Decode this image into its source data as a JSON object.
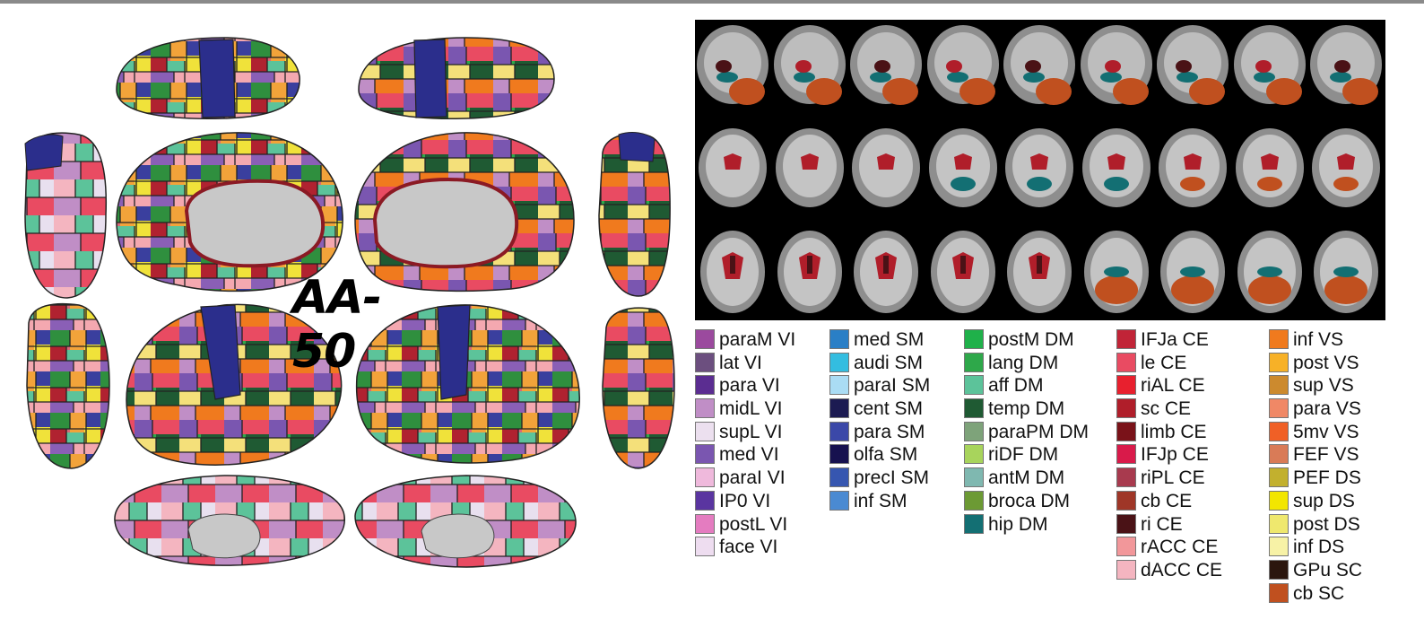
{
  "atlas_title": "AA-50",
  "colors": {
    "cortex_gray": "#c8c8c8",
    "border": "#2a2a2a",
    "slice_bg": "#000000"
  },
  "legend": {
    "columns": [
      [
        {
          "label": "paraM VI",
          "color": "#9b4a9e"
        },
        {
          "label": "lat VI",
          "color": "#6c4f7f"
        },
        {
          "label": "para VI",
          "color": "#5b2d91"
        },
        {
          "label": "midL VI",
          "color": "#c08ec6"
        },
        {
          "label": "supL VI",
          "color": "#ece0ef"
        },
        {
          "label": "med VI",
          "color": "#7a56b0"
        },
        {
          "label": "paraI VI",
          "color": "#efb9dc"
        },
        {
          "label": "IP0 VI",
          "color": "#5a35a0"
        },
        {
          "label": "postL VI",
          "color": "#e47cc0"
        },
        {
          "label": "face VI",
          "color": "#eeddf0"
        }
      ],
      [
        {
          "label": "med SM",
          "color": "#2a7fc6"
        },
        {
          "label": "audi SM",
          "color": "#33bde0"
        },
        {
          "label": "paraI SM",
          "color": "#aadcf4"
        },
        {
          "label": "cent SM",
          "color": "#1c1b52"
        },
        {
          "label": "para SM",
          "color": "#3b48a8"
        },
        {
          "label": "olfa SM",
          "color": "#17114f"
        },
        {
          "label": "precI SM",
          "color": "#3656b0"
        },
        {
          "label": "inf SM",
          "color": "#4a8ad2"
        }
      ],
      [
        {
          "label": "postM DM",
          "color": "#1fb14a"
        },
        {
          "label": "lang DM",
          "color": "#2ea84a"
        },
        {
          "label": "aff DM",
          "color": "#5cc39a"
        },
        {
          "label": "temp DM",
          "color": "#1f5a33"
        },
        {
          "label": "paraPM DM",
          "color": "#7ea37a"
        },
        {
          "label": "riDF DM",
          "color": "#a8d45c"
        },
        {
          "label": "antM DM",
          "color": "#7fb8b0"
        },
        {
          "label": "broca DM",
          "color": "#6c9a34"
        },
        {
          "label": "hip DM",
          "color": "#136f73"
        }
      ],
      [
        {
          "label": "IFJa CE",
          "color": "#c12437"
        },
        {
          "label": "le CE",
          "color": "#e94b62"
        },
        {
          "label": "riAL CE",
          "color": "#e8202e"
        },
        {
          "label": "sc CE",
          "color": "#b01e2a"
        },
        {
          "label": "limb CE",
          "color": "#7a1219"
        },
        {
          "label": "IFJp CE",
          "color": "#d91a4a"
        },
        {
          "label": "riPL CE",
          "color": "#a83a4e"
        },
        {
          "label": "cb CE",
          "color": "#9f3627"
        },
        {
          "label": "ri CE",
          "color": "#4a1216"
        },
        {
          "label": "rACC CE",
          "color": "#f2979a"
        },
        {
          "label": "dACC CE",
          "color": "#f4b5c0"
        }
      ],
      [
        {
          "label": "inf VS",
          "color": "#f07a1e"
        },
        {
          "label": "post VS",
          "color": "#f7b127"
        },
        {
          "label": "sup VS",
          "color": "#cc8a2e"
        },
        {
          "label": "para VS",
          "color": "#f08866"
        },
        {
          "label": "5mv VS",
          "color": "#f06026"
        },
        {
          "label": "FEF VS",
          "color": "#d97b57"
        },
        {
          "label": "PEF DS",
          "color": "#c2b02e"
        },
        {
          "label": "sup DS",
          "color": "#f2e600"
        },
        {
          "label": "post DS",
          "color": "#efe86e"
        },
        {
          "label": "inf DS",
          "color": "#f7f2a6"
        },
        {
          "label": "GPu SC",
          "color": "#2b160e"
        },
        {
          "label": "cb SC",
          "color": "#c0501f"
        }
      ]
    ]
  }
}
